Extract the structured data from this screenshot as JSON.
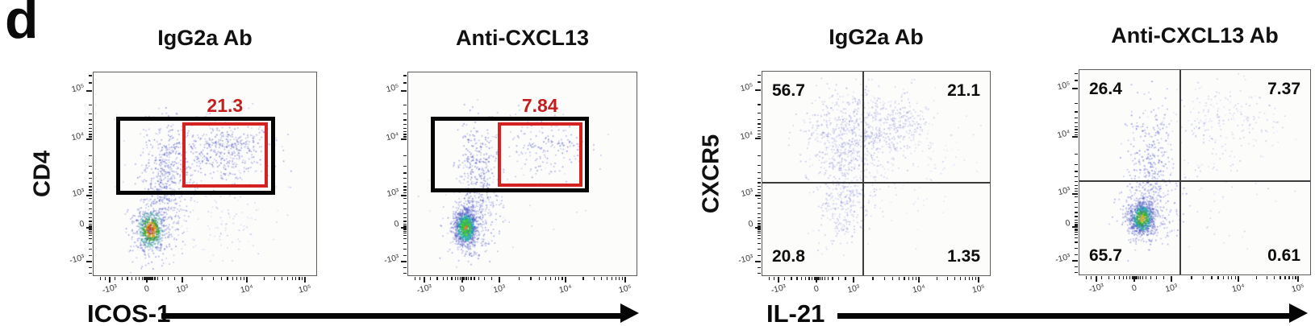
{
  "panel_letter": "d",
  "arrows": {
    "left": {
      "label": "ICOS-1"
    },
    "right": {
      "label": "IL-21"
    }
  },
  "colors": {
    "gate_black": "#050505",
    "gate_red": "#d42222",
    "gate_value_red": "#c41e1e",
    "quad_line": "#3c3c3c",
    "frame": "#5c5c5c",
    "dot_blue": [
      "#3f46bd",
      "#5a62cd",
      "#7078d6"
    ],
    "dot_violet": [
      "#7b80d2",
      "#8f94da",
      "#666cc4"
    ],
    "heat_warm": [
      "#d4591c",
      "#c9a61e",
      "#3ea33d",
      "#37a49c",
      "#5560c6"
    ],
    "heat_green": [
      "#e08a20",
      "#35c93a",
      "#2ab3a8",
      "#4a55c0",
      "#7a80d4"
    ],
    "heat_yellow": [
      "#c9b922",
      "#3cae3a",
      "#33a7ad",
      "#4a55c0",
      "#7a80d4"
    ]
  },
  "chart_data": [
    {
      "type": "scatter",
      "title": "IgG2a Ab",
      "xlabel": "ICOS-1",
      "ylabel": "CD4",
      "x_ticks": [
        "-10³",
        "0",
        "10³",
        "10⁴",
        "10⁵"
      ],
      "y_ticks": [
        "10⁵",
        "10⁴",
        "10³",
        "0",
        "-10³"
      ],
      "gate": {
        "outer": [
          0.101,
          0.22,
          0.817,
          0.606
        ],
        "inner": [
          0.4,
          0.248,
          0.784,
          0.571
        ],
        "value": "21.3"
      },
      "clusters": [
        {
          "cx": 0.255,
          "cy": 0.775,
          "sx": 0.03,
          "sy": 0.048,
          "n": 520,
          "style": "heat_warm"
        },
        {
          "cx": 0.27,
          "cy": 0.76,
          "sx": 0.06,
          "sy": 0.095,
          "n": 260,
          "style": "blue"
        },
        {
          "cx": 0.33,
          "cy": 0.6,
          "sx": 0.05,
          "sy": 0.08,
          "n": 220,
          "style": "blue"
        },
        {
          "cx": 0.33,
          "cy": 0.41,
          "sx": 0.06,
          "sy": 0.085,
          "n": 260,
          "style": "blue"
        },
        {
          "cx": 0.58,
          "cy": 0.38,
          "sx": 0.11,
          "sy": 0.085,
          "n": 470,
          "style": "blue"
        },
        {
          "cx": 0.55,
          "cy": 0.73,
          "sx": 0.13,
          "sy": 0.09,
          "n": 90,
          "style": "blue_faint"
        },
        {
          "cx": 0.5,
          "cy": 0.5,
          "sx": 0.24,
          "sy": 0.2,
          "n": 60,
          "style": "blue_faint"
        }
      ]
    },
    {
      "type": "scatter",
      "title": "Anti-CXCL13",
      "xlabel": "ICOS-1",
      "ylabel": "",
      "x_ticks": [
        "-10³",
        "0",
        "10³",
        "10⁴",
        "10⁵"
      ],
      "y_ticks": [
        "10⁵",
        "10⁴",
        "10³",
        "0",
        "-10³"
      ],
      "gate": {
        "outer": [
          0.098,
          0.22,
          0.796,
          0.594
        ],
        "inner": [
          0.393,
          0.248,
          0.765,
          0.567
        ],
        "value": "7.84"
      },
      "clusters": [
        {
          "cx": 0.25,
          "cy": 0.765,
          "sx": 0.027,
          "sy": 0.05,
          "n": 780,
          "style": "heat_green"
        },
        {
          "cx": 0.27,
          "cy": 0.755,
          "sx": 0.055,
          "sy": 0.085,
          "n": 300,
          "style": "blue"
        },
        {
          "cx": 0.3,
          "cy": 0.44,
          "sx": 0.042,
          "sy": 0.11,
          "n": 260,
          "style": "blue"
        },
        {
          "cx": 0.32,
          "cy": 0.64,
          "sx": 0.05,
          "sy": 0.06,
          "n": 100,
          "style": "blue"
        },
        {
          "cx": 0.6,
          "cy": 0.37,
          "sx": 0.1,
          "sy": 0.078,
          "n": 170,
          "style": "blue"
        },
        {
          "cx": 0.45,
          "cy": 0.6,
          "sx": 0.18,
          "sy": 0.15,
          "n": 40,
          "style": "blue_faint"
        }
      ]
    },
    {
      "type": "scatter",
      "title": "IgG2a Ab",
      "xlabel": "IL-21",
      "ylabel": "CXCR5",
      "x_ticks": [
        "-10³",
        "0",
        "10³",
        "10⁴",
        "10⁵"
      ],
      "y_ticks": [
        "10⁵",
        "10⁴",
        "10³",
        "0",
        "-10³"
      ],
      "quadrants": {
        "vx": 0.444,
        "hy": 0.549,
        "values": {
          "tl": "56.7",
          "tr": "21.1",
          "bl": "20.8",
          "br": "1.35"
        }
      },
      "clusters": [
        {
          "cx": 0.38,
          "cy": 0.32,
          "sx": 0.095,
          "sy": 0.12,
          "n": 650,
          "style": "violet"
        },
        {
          "cx": 0.58,
          "cy": 0.26,
          "sx": 0.09,
          "sy": 0.08,
          "n": 280,
          "style": "violet"
        },
        {
          "cx": 0.36,
          "cy": 0.65,
          "sx": 0.06,
          "sy": 0.11,
          "n": 280,
          "style": "violet"
        },
        {
          "cx": 0.55,
          "cy": 0.45,
          "sx": 0.2,
          "sy": 0.18,
          "n": 130,
          "style": "violet_faint"
        },
        {
          "cx": 0.75,
          "cy": 0.35,
          "sx": 0.12,
          "sy": 0.12,
          "n": 40,
          "style": "violet_faint"
        }
      ]
    },
    {
      "type": "scatter",
      "title": "Anti-CXCL13 Ab",
      "xlabel": "IL-21",
      "ylabel": "",
      "x_ticks": [
        "-10³",
        "0",
        "10³",
        "10⁴",
        "10⁵"
      ],
      "y_ticks": [
        "10⁵",
        "10⁴",
        "10³",
        "0",
        "-10³"
      ],
      "quadrants": {
        "vx": 0.4375,
        "hy": 0.547,
        "values": {
          "tl": "26.4",
          "tr": "7.37",
          "bl": "65.7",
          "br": "0.61"
        }
      },
      "clusters": [
        {
          "cx": 0.27,
          "cy": 0.725,
          "sx": 0.03,
          "sy": 0.045,
          "n": 650,
          "style": "heat_yellow"
        },
        {
          "cx": 0.295,
          "cy": 0.71,
          "sx": 0.06,
          "sy": 0.08,
          "n": 280,
          "style": "blue"
        },
        {
          "cx": 0.31,
          "cy": 0.43,
          "sx": 0.05,
          "sy": 0.15,
          "n": 320,
          "style": "blue"
        },
        {
          "cx": 0.62,
          "cy": 0.24,
          "sx": 0.12,
          "sy": 0.09,
          "n": 200,
          "style": "blue_faint"
        },
        {
          "cx": 0.55,
          "cy": 0.5,
          "sx": 0.15,
          "sy": 0.15,
          "n": 60,
          "style": "blue_faint"
        },
        {
          "cx": 0.6,
          "cy": 0.8,
          "sx": 0.1,
          "sy": 0.06,
          "n": 12,
          "style": "blue_faint"
        }
      ]
    }
  ]
}
